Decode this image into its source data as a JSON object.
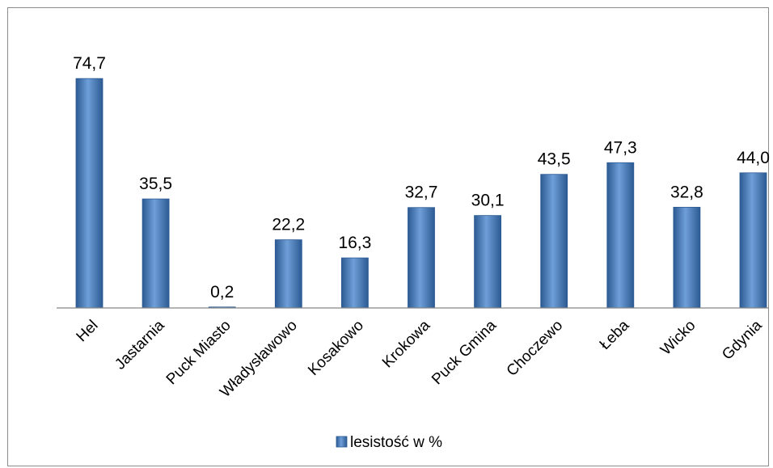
{
  "chart_data": {
    "type": "bar",
    "title": "",
    "xlabel": "",
    "ylabel": "",
    "categories": [
      "Hel",
      "Jastarnia",
      "Puck Miasto",
      "Władysławowo",
      "Kosakowo",
      "Krokowa",
      "Puck Gmina",
      "Choczewo",
      "Łeba",
      "Wicko",
      "Gdynia"
    ],
    "series": [
      {
        "name": "lesistość w %",
        "values": [
          74.7,
          35.5,
          0.2,
          22.2,
          16.3,
          32.7,
          30.1,
          43.5,
          47.3,
          32.8,
          44.0
        ],
        "labels": [
          "74,7",
          "35,5",
          "0,2",
          "22,2",
          "16,3",
          "32,7",
          "30,1",
          "43,5",
          "47,3",
          "32,8",
          "44,0"
        ]
      }
    ],
    "ylim": [
      0,
      80
    ],
    "grid": false,
    "legend": "bottom",
    "colors": {
      "bar": "#4f81bd",
      "bar_dark": "#2c5a93",
      "bar_light": "#6f9fd8"
    }
  }
}
